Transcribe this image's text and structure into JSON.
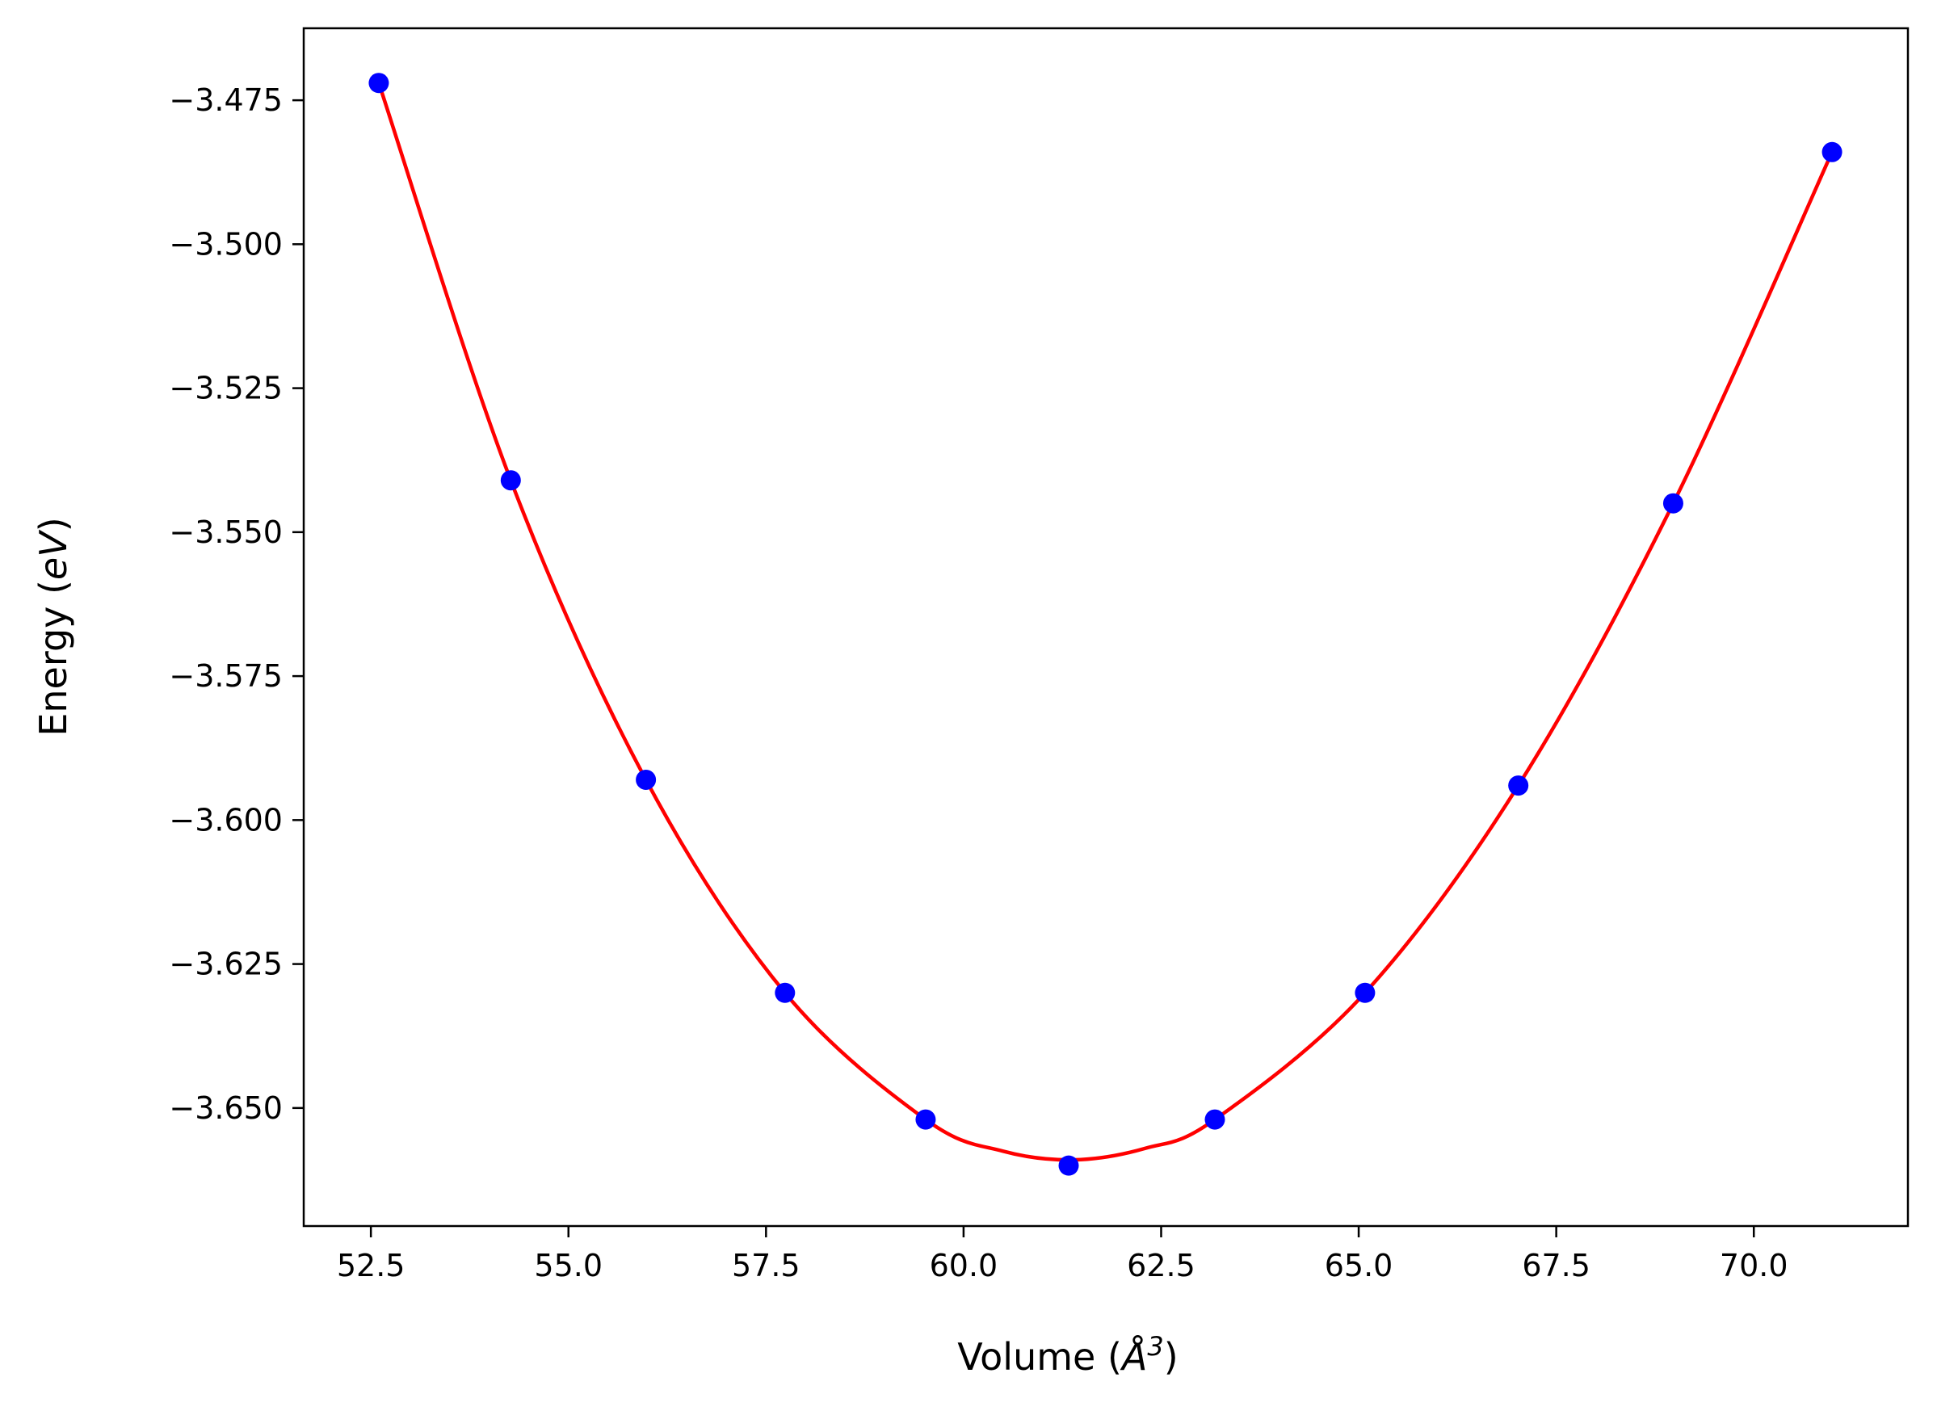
{
  "chart_data": {
    "type": "scatter",
    "title": "",
    "xlabel": "Volume",
    "xlabel_unit": "Å",
    "xlabel_unit_sup": "3",
    "ylabel": "Energy",
    "ylabel_unit": "eV",
    "xlim": [
      51.65,
      71.95
    ],
    "ylim": [
      -3.6705,
      -3.4625
    ],
    "xticks": [
      52.5,
      55.0,
      57.5,
      60.0,
      62.5,
      65.0,
      67.5,
      70.0
    ],
    "xtick_labels": [
      "52.5",
      "55.0",
      "57.5",
      "60.0",
      "62.5",
      "65.0",
      "67.5",
      "70.0"
    ],
    "yticks": [
      -3.475,
      -3.5,
      -3.525,
      -3.55,
      -3.575,
      -3.6,
      -3.625,
      -3.65
    ],
    "ytick_labels": [
      "−3.475",
      "−3.500",
      "−3.525",
      "−3.550",
      "−3.575",
      "−3.600",
      "−3.625",
      "−3.650"
    ],
    "grid": false,
    "series": [
      {
        "kind": "points",
        "color": "#0000ff",
        "x": [
          52.6,
          54.27,
          55.98,
          57.74,
          59.52,
          61.33,
          63.18,
          65.08,
          67.02,
          68.98,
          70.99
        ],
        "y": [
          -3.472,
          -3.541,
          -3.593,
          -3.63,
          -3.652,
          -3.66,
          -3.652,
          -3.63,
          -3.594,
          -3.545,
          -3.484
        ]
      },
      {
        "kind": "fit-line",
        "color": "#ff0000",
        "x": [
          52.6,
          54.27,
          55.98,
          57.74,
          59.52,
          60.5,
          61.4,
          62.3,
          63.18,
          65.08,
          67.02,
          68.98,
          70.99
        ],
        "y": [
          -3.472,
          -3.541,
          -3.593,
          -3.63,
          -3.652,
          -3.6575,
          -3.659,
          -3.657,
          -3.652,
          -3.63,
          -3.594,
          -3.545,
          -3.484
        ]
      }
    ]
  }
}
